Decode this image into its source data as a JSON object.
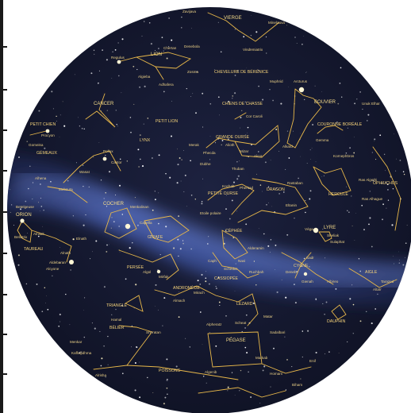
{
  "chart_data": {
    "type": "star-chart",
    "colors": {
      "sky": "#161a33",
      "milky_way": "#3a4f9a",
      "lines": "#e8b84a",
      "labels": "#f4d27a",
      "frame": "#1a1a1a"
    },
    "constellations": [
      {
        "name": "VIERGE",
        "key": "vierge"
      },
      {
        "name": "LION",
        "key": "lion"
      },
      {
        "name": "CHEVELURE DE BÉRÉNICE",
        "key": "chevelure"
      },
      {
        "name": "CANCER",
        "key": "cancer"
      },
      {
        "name": "PETIT LION",
        "key": "petit-lion"
      },
      {
        "name": "CHIENS DE CHASSE",
        "key": "chiens"
      },
      {
        "name": "BOUVIER",
        "key": "bouvier"
      },
      {
        "name": "PETIT CHIEN",
        "key": "petit-chien"
      },
      {
        "name": "COURONNE BORÉALE",
        "key": "couronne"
      },
      {
        "name": "LYNX",
        "key": "lynx"
      },
      {
        "name": "GRANDE OURSE",
        "key": "grande-ourse"
      },
      {
        "name": "GÉMEAUX",
        "key": "gemeaux"
      },
      {
        "name": "OPHIUCHUS",
        "key": "ophiuchus"
      },
      {
        "name": "HERCULE",
        "key": "hercule"
      },
      {
        "name": "DRAGON",
        "key": "dragon"
      },
      {
        "name": "PETITE OURSE",
        "key": "petite-ourse"
      },
      {
        "name": "COCHER",
        "key": "cocher"
      },
      {
        "name": "ORION",
        "key": "orion"
      },
      {
        "name": "GIRAFE",
        "key": "girafe"
      },
      {
        "name": "CÉPHÉE",
        "key": "cephee"
      },
      {
        "name": "LYRE",
        "key": "lyre"
      },
      {
        "name": "TAUREAU",
        "key": "taureau"
      },
      {
        "name": "PERSÉE",
        "key": "persee"
      },
      {
        "name": "CASSIOPÉE",
        "key": "cassiopee"
      },
      {
        "name": "CYGNE",
        "key": "cygne"
      },
      {
        "name": "AIGLE",
        "key": "aigle"
      },
      {
        "name": "ANDROMÈDE",
        "key": "andromede"
      },
      {
        "name": "TRIANGLE",
        "key": "triangle"
      },
      {
        "name": "LÉZARD",
        "key": "lezard"
      },
      {
        "name": "BÉLIER",
        "key": "belier"
      },
      {
        "name": "DAUPHIN",
        "key": "dauphin"
      },
      {
        "name": "PÉGASE",
        "key": "pegase"
      },
      {
        "name": "POISSONS",
        "key": "poissons"
      }
    ],
    "stars": [
      "Zavijava",
      "Minelauva",
      "Chertan",
      "Denebola",
      "Vindemiatrix",
      "Regulus",
      "Zosma",
      "Algieba",
      "Adhafera",
      "Muphrid",
      "Arcturus",
      "Unuk Elhaï",
      "Cor Caroli",
      "Procyon",
      "Gomeisa",
      "Pollux",
      "Castor",
      "Merak",
      "Phecda",
      "Alioth",
      "Alkaïd",
      "Mizar",
      "Alcor",
      "Dubhe",
      "Gemma",
      "Kornephoros",
      "Thuban",
      "Kochab",
      "Pherkad",
      "Eltanin",
      "Rastaban",
      "Ras Algethi",
      "Ras Alhague",
      "Alhena",
      "Wasat",
      "Mebsuta",
      "Menkalinan",
      "Capella",
      "Betelgeuse",
      "Bellatrix",
      "Alnitak",
      "Aldebaran",
      "Elnath",
      "Etoile polaire",
      "Véga",
      "Sheliak",
      "Sulaphat",
      "Alderamin",
      "Mirfak",
      "Algol",
      "Caph",
      "Schedar",
      "Navi",
      "Ruchbah",
      "Deneb",
      "Sadr",
      "Gienah",
      "Albireo",
      "Altaïr",
      "Tarazed",
      "Almach",
      "Mirach",
      "Alpheratz",
      "Hamal",
      "Sheratan",
      "Scheat",
      "Matar",
      "Sadalbari",
      "Markab",
      "Homam",
      "Biham",
      "Enif",
      "Alrisha",
      "Menkar",
      "Kaffaljidhma",
      "Algenib",
      "Alnath",
      "Alcyone"
    ]
  }
}
